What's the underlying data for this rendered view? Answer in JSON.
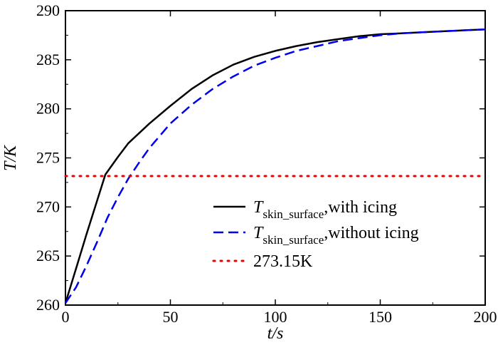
{
  "chart_data": {
    "type": "line",
    "xlabel": "t/s",
    "ylabel": "T/K",
    "xlim": [
      0,
      200
    ],
    "ylim": [
      260,
      290
    ],
    "xticks": [
      0,
      50,
      100,
      150,
      200
    ],
    "yticks": [
      260,
      265,
      270,
      275,
      280,
      285,
      290
    ],
    "xtick_labels": [
      "0",
      "50",
      "100",
      "150",
      "200"
    ],
    "ytick_labels": [
      "260",
      "265",
      "270",
      "275",
      "280",
      "285",
      "290"
    ],
    "grid": false,
    "legend_position": "lower-right",
    "series": [
      {
        "legend_symbol": "T",
        "legend_subscript": "skin_surface",
        "legend_suffix": ",with icing",
        "color": "#000000",
        "style": "solid",
        "x": [
          0,
          5,
          10,
          15,
          19,
          25,
          30,
          40,
          50,
          60,
          70,
          80,
          90,
          100,
          110,
          120,
          130,
          140,
          150,
          160,
          170,
          180,
          190,
          200
        ],
        "y": [
          260.2,
          263.7,
          267.2,
          270.6,
          273.3,
          275.1,
          276.5,
          278.5,
          280.3,
          282.0,
          283.4,
          284.5,
          285.3,
          285.9,
          286.4,
          286.8,
          287.1,
          287.4,
          287.6,
          287.7,
          287.8,
          287.9,
          288.0,
          288.1
        ]
      },
      {
        "legend_symbol": "T",
        "legend_subscript": "skin_surface",
        "legend_suffix": ",without icing",
        "color": "#0000ee",
        "style": "dashed",
        "x": [
          0,
          5,
          10,
          15,
          20,
          25,
          30,
          35,
          40,
          50,
          60,
          70,
          80,
          90,
          100,
          110,
          120,
          130,
          140,
          150,
          160,
          170,
          180,
          190,
          200
        ],
        "y": [
          260.2,
          261.8,
          264.0,
          266.4,
          268.9,
          271.0,
          272.9,
          274.5,
          276.0,
          278.5,
          280.4,
          282.0,
          283.3,
          284.4,
          285.2,
          285.9,
          286.4,
          286.9,
          287.2,
          287.5,
          287.7,
          287.8,
          287.9,
          288.0,
          288.1
        ]
      },
      {
        "name": "273.15K",
        "color": "#ee0000",
        "style": "dotted",
        "x": [
          0,
          200
        ],
        "y": [
          273.15,
          273.15
        ]
      }
    ]
  }
}
